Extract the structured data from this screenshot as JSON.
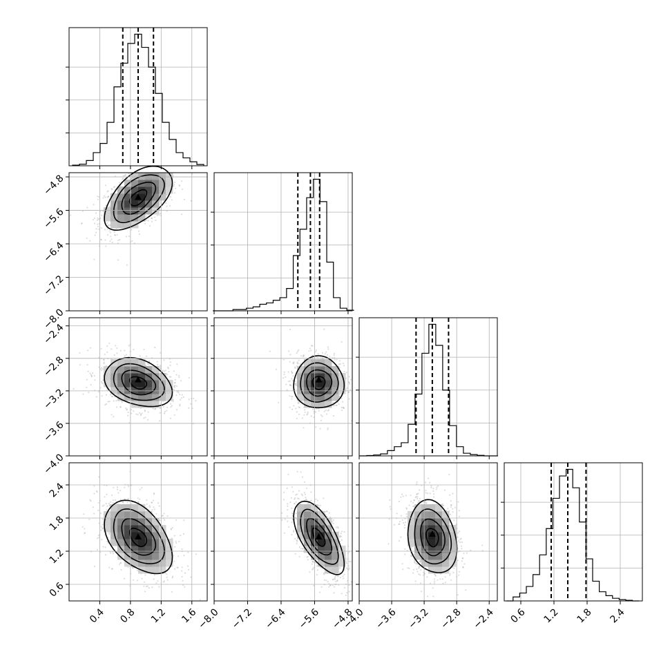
{
  "chart_data": {
    "type": "corner",
    "grid": true,
    "parameters": [
      {
        "index": 0,
        "range": [
          0.0,
          1.8
        ],
        "ticks": [
          0.4,
          0.8,
          1.2,
          1.6
        ],
        "tick_labels": [
          "0.4",
          "0.8",
          "1.2",
          "1.6"
        ],
        "quantiles": [
          0.7,
          0.9,
          1.1
        ],
        "hist_x": [
          0.09,
          0.18,
          0.27,
          0.36,
          0.45,
          0.54,
          0.63,
          0.72,
          0.81,
          0.9,
          0.99,
          1.08,
          1.17,
          1.26,
          1.35,
          1.44,
          1.53,
          1.62,
          1.71
        ],
        "hist_y": [
          0.005,
          0.012,
          0.04,
          0.1,
          0.17,
          0.33,
          0.6,
          0.78,
          0.93,
          1.0,
          0.9,
          0.75,
          0.55,
          0.33,
          0.2,
          0.1,
          0.06,
          0.03,
          0.01
        ]
      },
      {
        "index": 1,
        "range": [
          -8.0,
          -4.7
        ],
        "ticks": [
          -8.0,
          -7.2,
          -6.4,
          -5.6,
          -4.8
        ],
        "tick_labels": [
          "−8.0",
          "−7.2",
          "−6.4",
          "−5.6",
          "−4.8"
        ],
        "quantiles": [
          -6.0,
          -5.7,
          -5.48
        ],
        "hist_x": [
          -7.95,
          -7.79,
          -7.63,
          -7.47,
          -7.31,
          -7.15,
          -6.99,
          -6.83,
          -6.67,
          -6.51,
          -6.35,
          -6.19,
          -6.03,
          -5.87,
          -5.71,
          -5.55,
          -5.39,
          -5.23,
          -5.07,
          -4.91,
          -4.75
        ],
        "hist_y": [
          0.0,
          0.0,
          0.0,
          0.01,
          0.01,
          0.02,
          0.03,
          0.05,
          0.06,
          0.08,
          0.1,
          0.17,
          0.42,
          0.62,
          0.86,
          1.0,
          0.83,
          0.37,
          0.1,
          0.02,
          0.005
        ]
      },
      {
        "index": 2,
        "range": [
          -4.0,
          -2.3
        ],
        "ticks": [
          -4.0,
          -3.6,
          -3.2,
          -2.8,
          -2.4
        ],
        "tick_labels": [
          "−4.0",
          "−3.6",
          "−3.2",
          "−2.8",
          "−2.4"
        ],
        "quantiles": [
          -3.3,
          -3.1,
          -2.9
        ],
        "hist_x": [
          -3.95,
          -3.865,
          -3.78,
          -3.695,
          -3.61,
          -3.525,
          -3.44,
          -3.355,
          -3.27,
          -3.185,
          -3.1,
          -3.015,
          -2.93,
          -2.845,
          -2.76,
          -2.675,
          -2.59,
          -2.505,
          -2.42,
          -2.335
        ],
        "hist_y": [
          0.0,
          0.003,
          0.007,
          0.015,
          0.04,
          0.07,
          0.1,
          0.24,
          0.47,
          0.78,
          1.0,
          0.84,
          0.5,
          0.23,
          0.07,
          0.02,
          0.01,
          0.004,
          0.0,
          0.0
        ]
      },
      {
        "index": 3,
        "range": [
          0.3,
          2.8
        ],
        "ticks": [
          0.6,
          1.2,
          1.8,
          2.4
        ],
        "tick_labels": [
          "0.6",
          "1.2",
          "1.8",
          "2.4"
        ],
        "quantiles": [
          1.15,
          1.45,
          1.78
        ],
        "hist_x": [
          0.4,
          0.52,
          0.64,
          0.76,
          0.88,
          1.0,
          1.12,
          1.24,
          1.36,
          1.48,
          1.6,
          1.72,
          1.84,
          1.96,
          2.08,
          2.2,
          2.32,
          2.44,
          2.56,
          2.68
        ],
        "hist_y": [
          0.0,
          0.03,
          0.06,
          0.11,
          0.2,
          0.35,
          0.55,
          0.78,
          0.95,
          1.0,
          0.86,
          0.6,
          0.32,
          0.15,
          0.07,
          0.04,
          0.02,
          0.01,
          0.005,
          0.0
        ]
      }
    ],
    "pairs": [
      {
        "row": 1,
        "col": 0,
        "center": [
          0.9,
          -5.3
        ],
        "spread": [
          0.22,
          0.38
        ],
        "corr": 0.55,
        "peak": [
          0.9,
          -5.3
        ]
      },
      {
        "row": 2,
        "col": 0,
        "center": [
          0.9,
          -3.1
        ],
        "spread": [
          0.22,
          0.15
        ],
        "corr": -0.3,
        "peak": [
          0.9,
          -3.07
        ]
      },
      {
        "row": 2,
        "col": 1,
        "center": [
          -5.5,
          -3.1
        ],
        "spread": [
          0.3,
          0.16
        ],
        "corr": 0.0,
        "peak": [
          -5.5,
          -3.07
        ]
      },
      {
        "row": 3,
        "col": 0,
        "center": [
          0.9,
          1.45
        ],
        "spread": [
          0.22,
          0.33
        ],
        "corr": -0.45,
        "peak": [
          0.9,
          1.45
        ]
      },
      {
        "row": 3,
        "col": 1,
        "center": [
          -5.5,
          1.45
        ],
        "spread": [
          0.3,
          0.33
        ],
        "corr": -0.65,
        "peak": [
          -5.5,
          1.45
        ]
      },
      {
        "row": 3,
        "col": 2,
        "center": [
          -3.1,
          1.45
        ],
        "spread": [
          0.15,
          0.33
        ],
        "corr": -0.2,
        "peak": [
          -3.1,
          1.5
        ]
      }
    ]
  }
}
